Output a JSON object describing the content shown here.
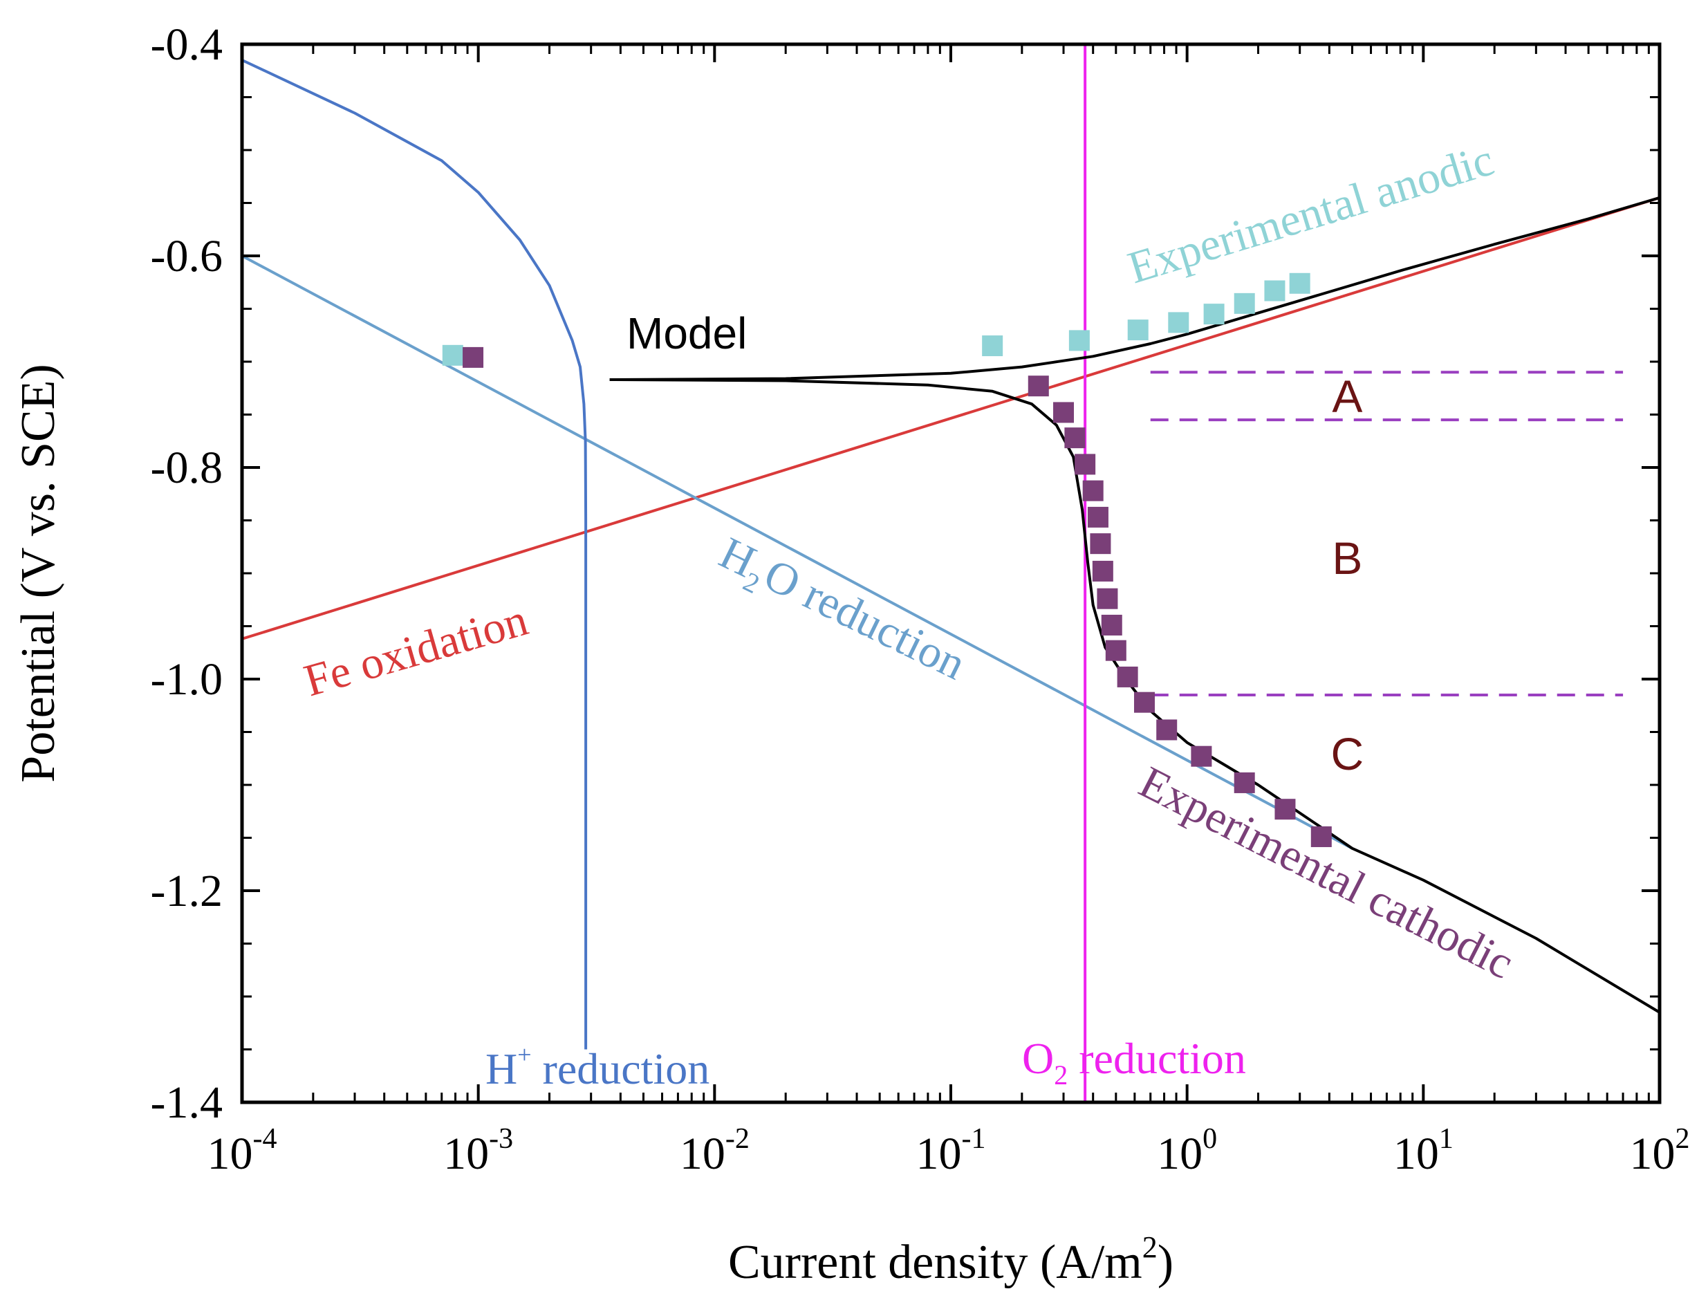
{
  "chart_data": {
    "type": "line",
    "xlabel": {
      "main": "Current density (A/m",
      "sup": "2",
      "end": ")"
    },
    "ylabel": "Potential (V vs. SCE)",
    "xscale": "log",
    "xlim": [
      0.0001,
      100
    ],
    "ylim": [
      -1.4,
      -0.4
    ],
    "x_ticks": [
      {
        "base": "10",
        "exp": "-4",
        "value": 0.0001
      },
      {
        "base": "10",
        "exp": "-3",
        "value": 0.001
      },
      {
        "base": "10",
        "exp": "-2",
        "value": 0.01
      },
      {
        "base": "10",
        "exp": "-1",
        "value": 0.1
      },
      {
        "base": "10",
        "exp": "0",
        "value": 1
      },
      {
        "base": "10",
        "exp": "1",
        "value": 10
      },
      {
        "base": "10",
        "exp": "2",
        "value": 100
      }
    ],
    "y_ticks": [
      {
        "label": "-0.4",
        "value": -0.4
      },
      {
        "label": "-0.6",
        "value": -0.6
      },
      {
        "label": "-0.8",
        "value": -0.8
      },
      {
        "label": "-1.0",
        "value": -1.0
      },
      {
        "label": "-1.2",
        "value": -1.2
      },
      {
        "label": "-1.4",
        "value": -1.4
      }
    ],
    "colors": {
      "fe": "#d93a3a",
      "h2o": "#6aa0cc",
      "hplus": "#4a76c6",
      "o2": "#ee22ee",
      "model": "#000000",
      "anodic": "#8fd3d6",
      "cathodic": "#7a3f78",
      "regions": "#9a3fc0",
      "region_text": "#6a1414"
    },
    "series": {
      "fe_oxidation": {
        "name": "Fe oxidation",
        "points": [
          [
            0.0001,
            -0.962
          ],
          [
            100,
            -0.545
          ]
        ]
      },
      "h2o_reduction": {
        "name": "H2O reduction",
        "points": [
          [
            0.0001,
            -0.6
          ],
          [
            5.0,
            -1.16
          ]
        ]
      },
      "h_plus_reduction": {
        "name": "H+ reduction",
        "limit": 0.00285,
        "points": [
          [
            0.0001,
            -0.415
          ],
          [
            0.0003,
            -0.465
          ],
          [
            0.0007,
            -0.51
          ],
          [
            0.001,
            -0.54
          ],
          [
            0.0015,
            -0.585
          ],
          [
            0.002,
            -0.628
          ],
          [
            0.0025,
            -0.68
          ],
          [
            0.0027,
            -0.705
          ],
          [
            0.0028,
            -0.74
          ],
          [
            0.00284,
            -0.775
          ],
          [
            0.00285,
            -0.85
          ],
          [
            0.00285,
            -1.35
          ]
        ]
      },
      "o2_reduction": {
        "name": "O2 reduction",
        "limit": 0.37
      },
      "model_anodic": {
        "name": "Model",
        "points": [
          [
            0.0036,
            -0.717
          ],
          [
            0.02,
            -0.716
          ],
          [
            0.1,
            -0.711
          ],
          [
            0.2,
            -0.705
          ],
          [
            0.4,
            -0.695
          ],
          [
            0.7,
            -0.683
          ],
          [
            1.0,
            -0.674
          ],
          [
            2.0,
            -0.654
          ],
          [
            4.0,
            -0.634
          ],
          [
            8.0,
            -0.614
          ],
          [
            20,
            -0.589
          ],
          [
            50,
            -0.565
          ],
          [
            100,
            -0.545
          ]
        ]
      },
      "model_cathodic": {
        "name": "Model",
        "points": [
          [
            0.0036,
            -0.717
          ],
          [
            0.02,
            -0.718
          ],
          [
            0.08,
            -0.722
          ],
          [
            0.15,
            -0.728
          ],
          [
            0.22,
            -0.74
          ],
          [
            0.28,
            -0.76
          ],
          [
            0.33,
            -0.79
          ],
          [
            0.36,
            -0.84
          ],
          [
            0.38,
            -0.89
          ],
          [
            0.4,
            -0.93
          ],
          [
            0.45,
            -0.97
          ],
          [
            0.55,
            -1.0
          ],
          [
            0.7,
            -1.03
          ],
          [
            1.0,
            -1.06
          ],
          [
            2.0,
            -1.1
          ],
          [
            5.0,
            -1.16
          ],
          [
            10,
            -1.19
          ],
          [
            30,
            -1.245
          ],
          [
            100,
            -1.315
          ]
        ]
      },
      "experimental_anodic": {
        "name": "Experimental anodic",
        "points": [
          [
            0.00078,
            -0.694
          ],
          [
            0.15,
            -0.685
          ],
          [
            0.35,
            -0.68
          ],
          [
            0.62,
            -0.67
          ],
          [
            0.92,
            -0.663
          ],
          [
            1.3,
            -0.655
          ],
          [
            1.75,
            -0.645
          ],
          [
            2.35,
            -0.633
          ],
          [
            3.0,
            -0.626
          ]
        ]
      },
      "experimental_cathodic": {
        "name": "Experimental cathodic",
        "points": [
          [
            0.00095,
            -0.696
          ],
          [
            0.235,
            -0.723
          ],
          [
            0.3,
            -0.748
          ],
          [
            0.335,
            -0.772
          ],
          [
            0.37,
            -0.797
          ],
          [
            0.4,
            -0.822
          ],
          [
            0.42,
            -0.847
          ],
          [
            0.43,
            -0.872
          ],
          [
            0.44,
            -0.898
          ],
          [
            0.46,
            -0.924
          ],
          [
            0.48,
            -0.949
          ],
          [
            0.5,
            -0.973
          ],
          [
            0.56,
            -0.998
          ],
          [
            0.66,
            -1.022
          ],
          [
            0.82,
            -1.048
          ],
          [
            1.15,
            -1.073
          ],
          [
            1.75,
            -1.098
          ],
          [
            2.6,
            -1.123
          ],
          [
            3.7,
            -1.149
          ]
        ]
      }
    },
    "regions": {
      "lines": [
        -0.71,
        -0.755,
        -1.015
      ],
      "x_range": [
        0.7,
        70
      ],
      "labels": [
        {
          "text": "A",
          "y": -0.732
        },
        {
          "text": "B",
          "y": -0.885
        },
        {
          "text": "C",
          "y": -1.07
        }
      ],
      "label_x": 10.0
    },
    "annotations": {
      "model": "Model",
      "experimental_anodic": "Experimental anodic",
      "experimental_cathodic": "Experimental cathodic",
      "fe_oxidation": "Fe oxidation",
      "h2o_reduction": {
        "base": "H",
        "sub": "2",
        "rest": "O reduction"
      },
      "h_plus_reduction": {
        "base": "H",
        "sup": "+",
        "rest": " reduction"
      },
      "o2_reduction": {
        "base": "O",
        "sub": "2",
        "rest": " reduction"
      }
    }
  }
}
